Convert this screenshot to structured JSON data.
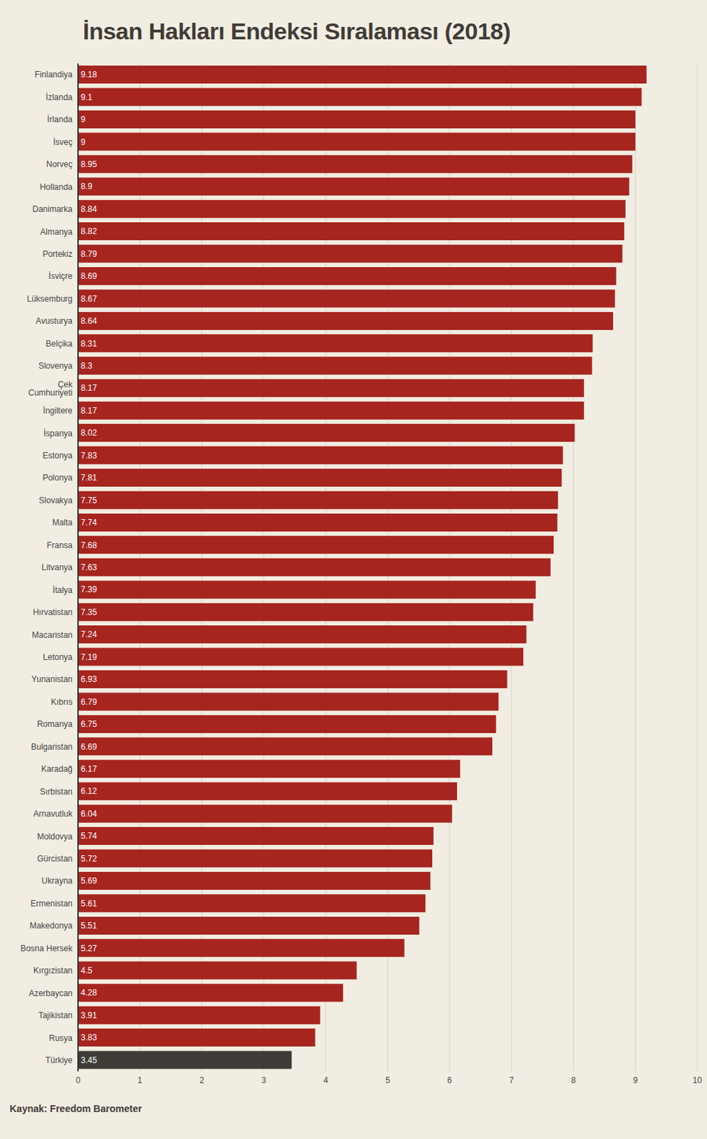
{
  "chart_data": {
    "type": "bar",
    "title": "İnsan Hakları Endeksi Sıralaması (2018)",
    "source": "Kaynak: Freedom Barometer",
    "orientation": "horizontal",
    "categories": [
      "Finlandiya",
      "İzlanda",
      "İrlanda",
      "İsveç",
      "Norveç",
      "Hollanda",
      "Danimarka",
      "Almanya",
      "Portekiz",
      "İsviçre",
      "Lüksemburg",
      "Avusturya",
      "Belçika",
      "Slovenya",
      "Çek Cumhuriyeti",
      "İngiltere",
      "İspanya",
      "Estonya",
      "Polonya",
      "Slovakya",
      "Malta",
      "Fransa",
      "Litvanya",
      "İtalya",
      "Hırvatistan",
      "Macaristan",
      "Letonya",
      "Yunanistan",
      "Kıbrıs",
      "Romanya",
      "Bulgaristan",
      "Karadağ",
      "Sırbistan",
      "Arnavutluk",
      "Moldovya",
      "Gürcistan",
      "Ukrayna",
      "Ermenistan",
      "Makedonya",
      "Bosna Hersek",
      "Kırgızistan",
      "Azerbaycan",
      "Tajikistan",
      "Rusya",
      "Türkiye"
    ],
    "values": [
      9.18,
      9.1,
      9,
      9,
      8.95,
      8.9,
      8.84,
      8.82,
      8.79,
      8.69,
      8.67,
      8.64,
      8.31,
      8.3,
      8.17,
      8.17,
      8.02,
      7.83,
      7.81,
      7.75,
      7.74,
      7.68,
      7.63,
      7.39,
      7.35,
      7.24,
      7.19,
      6.93,
      6.79,
      6.75,
      6.69,
      6.17,
      6.12,
      6.04,
      5.74,
      5.72,
      5.69,
      5.61,
      5.51,
      5.27,
      4.5,
      4.28,
      3.91,
      3.83,
      3.45
    ],
    "colors": [
      "#a6251f",
      "#a6251f",
      "#a6251f",
      "#a6251f",
      "#a6251f",
      "#a6251f",
      "#a6251f",
      "#a6251f",
      "#a6251f",
      "#a6251f",
      "#a6251f",
      "#a6251f",
      "#a6251f",
      "#a6251f",
      "#a6251f",
      "#a6251f",
      "#a6251f",
      "#a6251f",
      "#a6251f",
      "#a6251f",
      "#a6251f",
      "#a6251f",
      "#a6251f",
      "#a6251f",
      "#a6251f",
      "#a6251f",
      "#a6251f",
      "#a6251f",
      "#a6251f",
      "#a6251f",
      "#a6251f",
      "#a6251f",
      "#a6251f",
      "#a6251f",
      "#a6251f",
      "#a6251f",
      "#a6251f",
      "#a6251f",
      "#a6251f",
      "#a6251f",
      "#a6251f",
      "#a6251f",
      "#a6251f",
      "#a6251f",
      "#3f3c37"
    ],
    "xlim": [
      0,
      10
    ],
    "xticks": [
      0,
      1,
      2,
      3,
      4,
      5,
      6,
      7,
      8,
      9,
      10
    ],
    "grid": true,
    "data_labels": true
  }
}
